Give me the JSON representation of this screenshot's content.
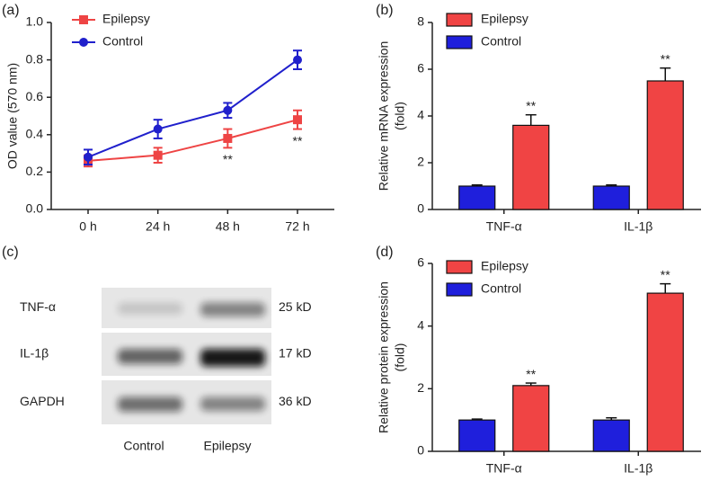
{
  "chart_data": [
    {
      "type": "line",
      "panel": "(a)",
      "ylabel": [
        "OD value (570 nm)"
      ],
      "categories": [
        "0 h",
        "24 h",
        "48 h",
        "72 h"
      ],
      "series": [
        {
          "name": "Epilepsy",
          "color": "#ee4444",
          "marker": "square",
          "values": [
            0.26,
            0.29,
            0.38,
            0.48
          ],
          "errors": [
            0.03,
            0.04,
            0.05,
            0.05
          ],
          "significance": [
            null,
            null,
            "**",
            "**"
          ]
        },
        {
          "name": "Control",
          "color": "#2020cc",
          "marker": "circle",
          "values": [
            0.28,
            0.43,
            0.53,
            0.8
          ],
          "errors": [
            0.04,
            0.05,
            0.04,
            0.05
          ],
          "significance": [
            null,
            null,
            null,
            null
          ]
        }
      ],
      "ylim": [
        0,
        1
      ],
      "yticks": [
        {
          "value": 0,
          "label": "0.0"
        },
        0.2,
        0.4,
        0.6,
        0.8,
        {
          "value": 1,
          "label": "1.0"
        }
      ]
    },
    {
      "type": "bar",
      "panel": "(b)",
      "ylabel": [
        "Relative mRNA expression",
        "(fold)"
      ],
      "categories": [
        "TNF-α",
        "IL-1β"
      ],
      "series": [
        {
          "name": "Epilepsy",
          "color": "#f04444",
          "values": [
            3.6,
            5.5
          ],
          "errors": [
            0.45,
            0.55
          ],
          "significance": [
            "**",
            "**"
          ]
        },
        {
          "name": "Control",
          "color": "#1f1fdc",
          "values": [
            1.0,
            1.0
          ],
          "errors": [
            0.05,
            0.05
          ],
          "significance": [
            null,
            null
          ]
        }
      ],
      "ylim": [
        0,
        8
      ],
      "yticks": [
        0,
        2,
        4,
        6,
        8
      ]
    },
    {
      "type": "blot",
      "panel": "(c)",
      "rows": [
        "TNF-α",
        "IL-1β",
        "GAPDH"
      ],
      "sizes": [
        "25 kD",
        "17 kD",
        "36 kD"
      ],
      "lanes": [
        "Control",
        "Epilepsy"
      ]
    },
    {
      "type": "bar",
      "panel": "(d)",
      "ylabel": [
        "Relative protein expression",
        "(fold)"
      ],
      "categories": [
        "TNF-α",
        "IL-1β"
      ],
      "series": [
        {
          "name": "Epilepsy",
          "color": "#f04444",
          "values": [
            2.1,
            5.05
          ],
          "errors": [
            0.08,
            0.3
          ],
          "significance": [
            "**",
            "**"
          ]
        },
        {
          "name": "Control",
          "color": "#1f1fdc",
          "values": [
            1.0,
            1.0
          ],
          "errors": [
            0.03,
            0.07
          ],
          "significance": [
            null,
            null
          ]
        }
      ],
      "ylim": [
        0,
        6
      ],
      "yticks": [
        0,
        2,
        4,
        6
      ]
    }
  ]
}
